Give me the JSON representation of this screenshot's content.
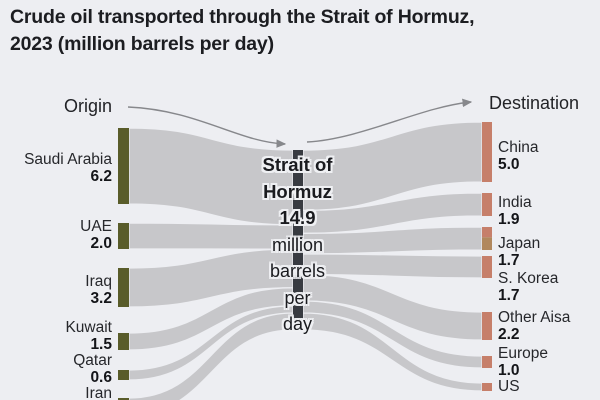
{
  "title": {
    "line1": "Crude oil transported through the Strait of Hormuz,",
    "line2": "2023 (million barrels per day)"
  },
  "column_headers": {
    "origin": "Origin",
    "destination": "Destination"
  },
  "center_display_lines": [
    "Strait of",
    "Hormuz",
    "14.9",
    "million",
    "barrels",
    "per",
    "day"
  ],
  "chart_data": {
    "type": "sankey",
    "title": "Crude oil transported through the Strait of Hormuz, 2023 (million barrels per day)",
    "unit": "million barrels per day",
    "center_node": "Strait of Hormuz",
    "total": 14.9,
    "origins": [
      {
        "name": "Saudi Arabia",
        "value": 6.2
      },
      {
        "name": "UAE",
        "value": 2.0
      },
      {
        "name": "Iraq",
        "value": 3.2
      },
      {
        "name": "Kuwait",
        "value": 1.5
      },
      {
        "name": "Qatar",
        "value": 0.6
      },
      {
        "name": "Iran",
        "value": null
      }
    ],
    "destinations": [
      {
        "name": "China",
        "value": 5.0
      },
      {
        "name": "India",
        "value": 1.9
      },
      {
        "name": "Japan",
        "value": 1.7
      },
      {
        "name": "S. Korea",
        "value": 1.7
      },
      {
        "name": "Other Aisa",
        "value": 2.2
      },
      {
        "name": "Europe",
        "value": 1.0
      },
      {
        "name": "US",
        "value": null
      }
    ]
  },
  "colors": {
    "background": "#edeef2",
    "origin_bar": "#595c2a",
    "destination_bar": "#c67f6a",
    "japan_bar_bottom": "#b1885d",
    "center_bar": "#383b41",
    "flow": "#c7c7ca",
    "arrow": "#87888c"
  }
}
